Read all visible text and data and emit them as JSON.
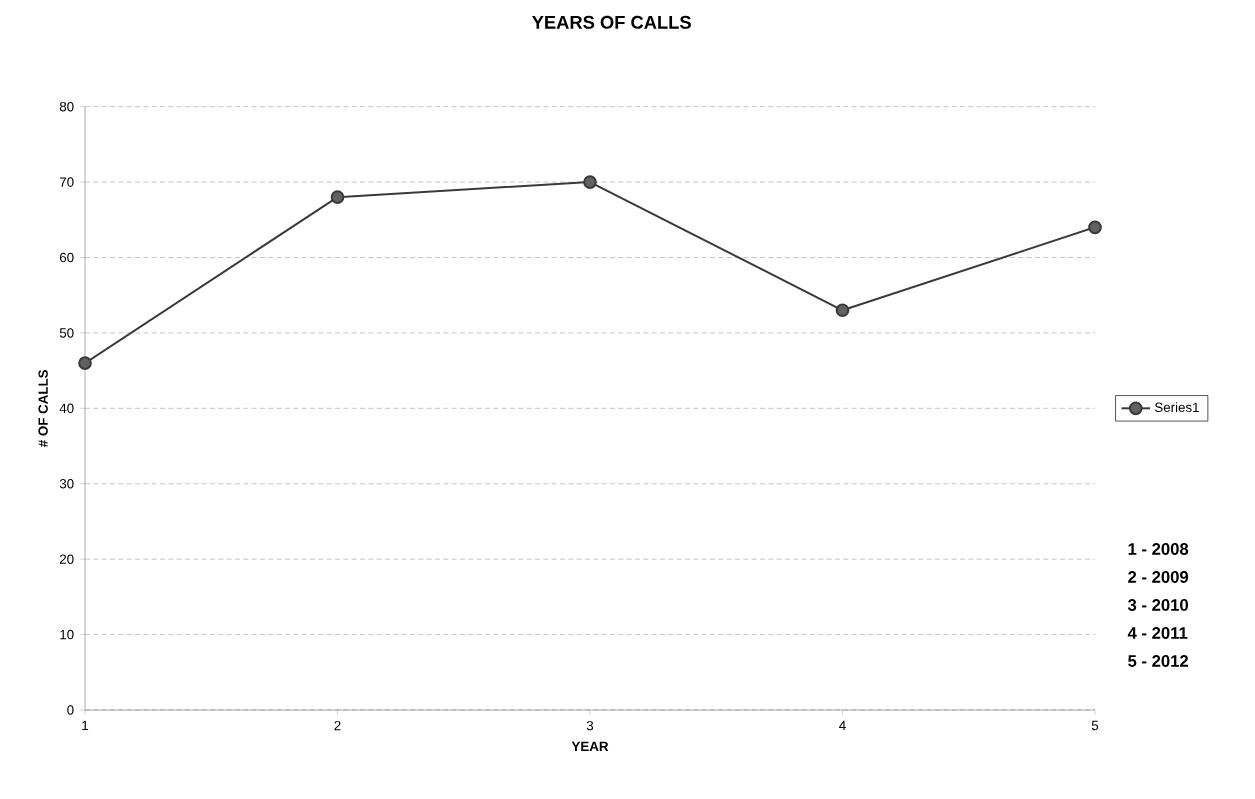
{
  "chart_data": {
    "type": "line",
    "title": "YEARS OF CALLS",
    "xlabel": "YEAR",
    "ylabel": "# OF CALLS",
    "x": [
      1,
      2,
      3,
      4,
      5
    ],
    "series": [
      {
        "name": "Series1",
        "color": "#3a3a3a",
        "values": [
          46,
          68,
          70,
          53,
          64
        ]
      }
    ],
    "xlim": [
      1,
      5
    ],
    "xticks": [
      1,
      2,
      3,
      4,
      5
    ],
    "ylim": [
      0,
      80
    ],
    "yticks": [
      0,
      10,
      20,
      30,
      40,
      50,
      60,
      70,
      80
    ],
    "grid": "y",
    "legend": "right",
    "marker": "circle",
    "line_style": "solid",
    "annotations": [
      "1 - 2008",
      "2 - 2009",
      "3 - 2010",
      "4 - 2011",
      "5 - 2012"
    ]
  }
}
